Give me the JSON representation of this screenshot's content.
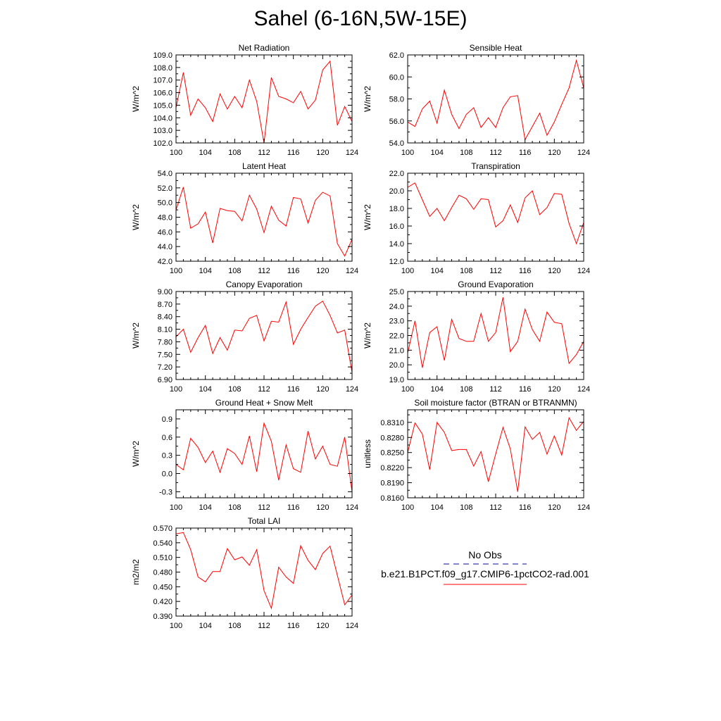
{
  "figure": {
    "title": "Sahel (6-16N,5W-15E)"
  },
  "legend": {
    "entries": [
      {
        "label": "No Obs",
        "color": "#3b3bb0",
        "style": "dashed"
      },
      {
        "label": "b.e21.B1PCT.f09_g17.CMIP6-1pctCO2-rad.001",
        "color": "#ff0000",
        "style": "solid"
      }
    ]
  },
  "chart_data": [
    {
      "type": "line",
      "title": "Net Radiation",
      "ylabel": "W/m^2",
      "xlim": [
        100,
        124
      ],
      "ylim": [
        102.0,
        109.0
      ],
      "xticks": [
        100,
        104,
        108,
        112,
        116,
        120,
        124
      ],
      "yticks": [
        "102.0",
        "103.0",
        "104.0",
        "105.0",
        "106.0",
        "107.0",
        "108.0",
        "109.0"
      ],
      "x": [
        100,
        101,
        102,
        103,
        104,
        105,
        106,
        107,
        108,
        109,
        110,
        111,
        112,
        113,
        114,
        115,
        116,
        117,
        118,
        119,
        120,
        121,
        122,
        123,
        124
      ],
      "series": [
        {
          "color": "#ff0000",
          "values": [
            104.8,
            107.6,
            104.2,
            105.5,
            104.8,
            103.7,
            105.9,
            104.7,
            105.7,
            104.8,
            107.0,
            105.3,
            102.0,
            107.2,
            105.7,
            105.5,
            105.2,
            106.1,
            104.7,
            105.4,
            107.8,
            108.5,
            103.4,
            104.9,
            103.7
          ]
        }
      ]
    },
    {
      "type": "line",
      "title": "Sensible Heat",
      "ylabel": "W/m^2",
      "xlim": [
        100,
        124
      ],
      "ylim": [
        54.0,
        62.0
      ],
      "xticks": [
        100,
        104,
        108,
        112,
        116,
        120,
        124
      ],
      "yticks": [
        "54.0",
        "56.0",
        "58.0",
        "60.0",
        "62.0"
      ],
      "x": [
        100,
        101,
        102,
        103,
        104,
        105,
        106,
        107,
        108,
        109,
        110,
        111,
        112,
        113,
        114,
        115,
        116,
        117,
        118,
        119,
        120,
        121,
        122,
        123,
        124
      ],
      "series": [
        {
          "color": "#ff0000",
          "values": [
            55.9,
            55.5,
            57.1,
            57.8,
            55.8,
            58.8,
            56.6,
            55.3,
            56.6,
            57.2,
            55.4,
            56.3,
            55.4,
            57.2,
            58.2,
            58.3,
            54.3,
            55.5,
            56.7,
            54.7,
            55.9,
            57.5,
            59.0,
            61.5,
            59.0
          ]
        }
      ]
    },
    {
      "type": "line",
      "title": "Latent Heat",
      "ylabel": "W/m^2",
      "xlim": [
        100,
        124
      ],
      "ylim": [
        42.0,
        54.0
      ],
      "xticks": [
        100,
        104,
        108,
        112,
        116,
        120,
        124
      ],
      "yticks": [
        "42.0",
        "44.0",
        "46.0",
        "48.0",
        "50.0",
        "52.0",
        "54.0"
      ],
      "x": [
        100,
        101,
        102,
        103,
        104,
        105,
        106,
        107,
        108,
        109,
        110,
        111,
        112,
        113,
        114,
        115,
        116,
        117,
        118,
        119,
        120,
        121,
        122,
        123,
        124
      ],
      "series": [
        {
          "color": "#ff0000",
          "values": [
            49.0,
            52.1,
            46.5,
            47.1,
            48.7,
            44.5,
            49.2,
            48.9,
            48.8,
            47.5,
            51.0,
            49.1,
            45.9,
            49.5,
            47.6,
            46.8,
            50.7,
            50.5,
            47.2,
            50.3,
            51.4,
            50.9,
            44.4,
            42.7,
            45.0
          ]
        }
      ]
    },
    {
      "type": "line",
      "title": "Transpiration",
      "ylabel": "W/m^2",
      "xlim": [
        100,
        124
      ],
      "ylim": [
        12.0,
        22.0
      ],
      "xticks": [
        100,
        104,
        108,
        112,
        116,
        120,
        124
      ],
      "yticks": [
        "12.0",
        "14.0",
        "16.0",
        "18.0",
        "20.0",
        "22.0"
      ],
      "x": [
        100,
        101,
        102,
        103,
        104,
        105,
        106,
        107,
        108,
        109,
        110,
        111,
        112,
        113,
        114,
        115,
        116,
        117,
        118,
        119,
        120,
        121,
        122,
        123,
        124
      ],
      "series": [
        {
          "color": "#ff0000",
          "values": [
            20.4,
            20.9,
            19.0,
            17.1,
            18.0,
            16.6,
            18.1,
            19.5,
            19.1,
            17.9,
            19.1,
            19.0,
            15.9,
            16.6,
            18.4,
            16.4,
            19.2,
            20.0,
            17.3,
            18.1,
            19.7,
            19.6,
            16.3,
            14.0,
            16.4
          ]
        }
      ]
    },
    {
      "type": "line",
      "title": "Canopy Evaporation",
      "ylabel": "W/m^2",
      "xlim": [
        100,
        124
      ],
      "ylim": [
        6.9,
        9.0
      ],
      "xticks": [
        100,
        104,
        108,
        112,
        116,
        120,
        124
      ],
      "yticks": [
        "6.90",
        "7.20",
        "7.50",
        "7.80",
        "8.10",
        "8.40",
        "8.70",
        "9.00"
      ],
      "x": [
        100,
        101,
        102,
        103,
        104,
        105,
        106,
        107,
        108,
        109,
        110,
        111,
        112,
        113,
        114,
        115,
        116,
        117,
        118,
        119,
        120,
        121,
        122,
        123,
        124
      ],
      "series": [
        {
          "color": "#ff0000",
          "values": [
            7.92,
            8.1,
            7.55,
            7.9,
            8.19,
            7.52,
            7.9,
            7.6,
            8.08,
            8.06,
            8.36,
            8.43,
            7.82,
            8.29,
            8.27,
            8.75,
            7.74,
            8.1,
            8.38,
            8.65,
            8.77,
            8.43,
            8.01,
            8.08,
            7.07
          ]
        }
      ]
    },
    {
      "type": "line",
      "title": "Ground Evaporation",
      "ylabel": "W/m^2",
      "xlim": [
        100,
        124
      ],
      "ylim": [
        19.0,
        25.0
      ],
      "xticks": [
        100,
        104,
        108,
        112,
        116,
        120,
        124
      ],
      "yticks": [
        "19.0",
        "20.0",
        "21.0",
        "22.0",
        "23.0",
        "24.0",
        "25.0"
      ],
      "x": [
        100,
        101,
        102,
        103,
        104,
        105,
        106,
        107,
        108,
        109,
        110,
        111,
        112,
        113,
        114,
        115,
        116,
        117,
        118,
        119,
        120,
        121,
        122,
        123,
        124
      ],
      "series": [
        {
          "color": "#ff0000",
          "values": [
            20.8,
            23.0,
            19.8,
            22.2,
            22.6,
            20.3,
            23.1,
            21.8,
            21.6,
            21.6,
            23.5,
            21.6,
            22.2,
            24.6,
            20.9,
            21.6,
            23.8,
            22.4,
            21.6,
            23.6,
            22.9,
            22.8,
            20.1,
            20.7,
            21.6
          ]
        }
      ]
    },
    {
      "type": "line",
      "title": "Ground Heat + Snow Melt",
      "ylabel": "W/m^2",
      "xlim": [
        100,
        124
      ],
      "ylim": [
        -0.4,
        1.05
      ],
      "xticks": [
        100,
        104,
        108,
        112,
        116,
        120,
        124
      ],
      "yticks": [
        "-0.3",
        "0.0",
        "0.3",
        "0.6",
        "0.9"
      ],
      "x": [
        100,
        101,
        102,
        103,
        104,
        105,
        106,
        107,
        108,
        109,
        110,
        111,
        112,
        113,
        114,
        115,
        116,
        117,
        118,
        119,
        120,
        121,
        122,
        123,
        124
      ],
      "series": [
        {
          "color": "#ff0000",
          "values": [
            0.15,
            0.06,
            0.58,
            0.43,
            0.18,
            0.37,
            0.02,
            0.41,
            0.33,
            0.15,
            0.62,
            0.03,
            0.83,
            0.53,
            -0.11,
            0.47,
            0.08,
            0.02,
            0.7,
            0.24,
            0.45,
            0.15,
            0.12,
            0.6,
            -0.3
          ]
        }
      ]
    },
    {
      "type": "line",
      "title": "Soil moisture factor (BTRAN or BTRANMN)",
      "ylabel": "unitless",
      "xlim": [
        100,
        124
      ],
      "ylim": [
        0.816,
        0.8335
      ],
      "xticks": [
        100,
        104,
        108,
        112,
        116,
        120,
        124
      ],
      "yticks": [
        "0.8160",
        "0.8190",
        "0.8220",
        "0.8250",
        "0.8280",
        "0.8310"
      ],
      "x": [
        100,
        101,
        102,
        103,
        104,
        105,
        106,
        107,
        108,
        109,
        110,
        111,
        112,
        113,
        114,
        115,
        116,
        117,
        118,
        119,
        120,
        121,
        122,
        123,
        124
      ],
      "series": [
        {
          "color": "#ff0000",
          "values": [
            0.825,
            0.8309,
            0.8287,
            0.8216,
            0.831,
            0.829,
            0.8254,
            0.8256,
            0.8256,
            0.8223,
            0.8252,
            0.8192,
            0.8247,
            0.83,
            0.8257,
            0.8172,
            0.8301,
            0.8276,
            0.829,
            0.8247,
            0.8283,
            0.8245,
            0.8319,
            0.8294,
            0.8312
          ]
        }
      ]
    },
    {
      "type": "line",
      "title": "Total LAI",
      "ylabel": "m2/m2",
      "xlim": [
        100,
        124
      ],
      "ylim": [
        0.39,
        0.57
      ],
      "xticks": [
        100,
        104,
        108,
        112,
        116,
        120,
        124
      ],
      "yticks": [
        "0.390",
        "0.420",
        "0.450",
        "0.480",
        "0.510",
        "0.540",
        "0.570"
      ],
      "x": [
        100,
        101,
        102,
        103,
        104,
        105,
        106,
        107,
        108,
        109,
        110,
        111,
        112,
        113,
        114,
        115,
        116,
        117,
        118,
        119,
        120,
        121,
        122,
        123,
        124
      ],
      "series": [
        {
          "color": "#ff0000",
          "values": [
            0.558,
            0.561,
            0.526,
            0.47,
            0.46,
            0.481,
            0.481,
            0.528,
            0.505,
            0.511,
            0.494,
            0.526,
            0.442,
            0.406,
            0.49,
            0.47,
            0.457,
            0.534,
            0.504,
            0.485,
            0.518,
            0.533,
            0.473,
            0.413,
            0.433
          ]
        }
      ]
    }
  ]
}
